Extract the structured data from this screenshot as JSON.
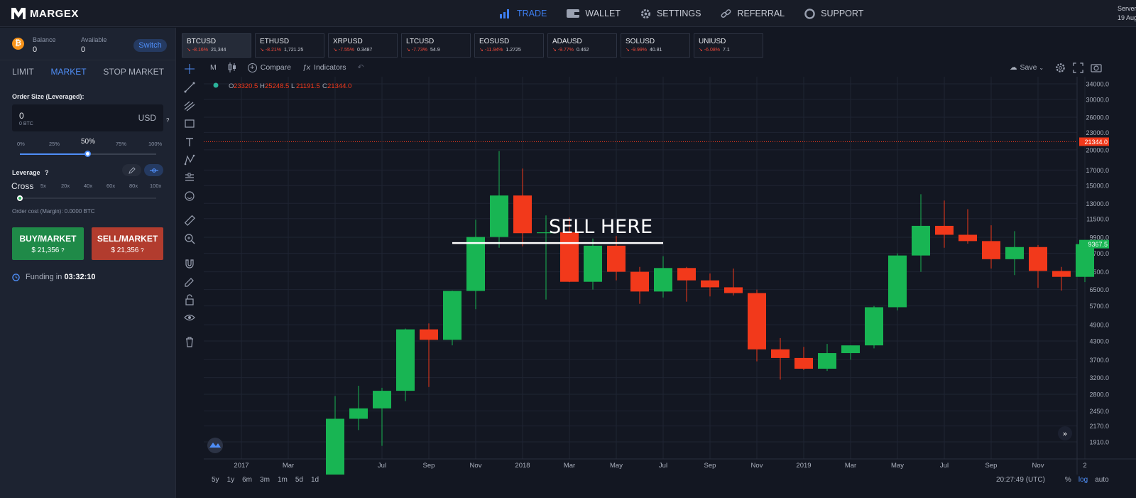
{
  "app": {
    "brand": "MARGEX"
  },
  "nav": [
    {
      "label": "TRADE",
      "icon": "bar-chart-icon",
      "active": true
    },
    {
      "label": "WALLET",
      "icon": "wallet-icon"
    },
    {
      "label": "SETTINGS",
      "icon": "gear-icon"
    },
    {
      "label": "REFERRAL",
      "icon": "link-icon"
    },
    {
      "label": "SUPPORT",
      "icon": "lifebuoy-icon"
    }
  ],
  "server": {
    "line1": "Server",
    "line2": "19 Aug"
  },
  "sidebar": {
    "balance_label": "Balance",
    "balance_value": "0",
    "available_label": "Available",
    "available_value": "0",
    "switch_label": "Switch",
    "order_tabs": [
      "LIMIT",
      "MARKET",
      "STOP MARKET"
    ],
    "active_tab": "MARKET",
    "order_size_label": "Order Size (Leveraged):",
    "order_size_value": "0",
    "order_size_sub": "0 BTC",
    "order_size_currency": "USD",
    "help_mark": "?",
    "size_percents": [
      "0%",
      "25%",
      "50%",
      "75%",
      "100%"
    ],
    "size_selected": "50%",
    "size_fraction": 0.5,
    "leverage_label": "Leverage",
    "leverage_options": [
      "Cross",
      "5x",
      "20x",
      "40x",
      "60x",
      "80x",
      "100x"
    ],
    "leverage_selected": "Cross",
    "order_cost": "Order cost (Margin): 0.0000 BTC",
    "buy_label": "BUY/MARKET",
    "buy_price": "$ 21,356",
    "sell_label": "SELL/MARKET",
    "sell_price": "$ 21,356",
    "funding_label": "Funding in",
    "funding_time": "03:32:10"
  },
  "tickers": [
    {
      "symbol": "BTCUSD",
      "change": "-8.16%",
      "price": "21,344",
      "selected": true
    },
    {
      "symbol": "ETHUSD",
      "change": "-8.21%",
      "price": "1,721.25"
    },
    {
      "symbol": "XRPUSD",
      "change": "-7.55%",
      "price": "0.3487"
    },
    {
      "symbol": "LTCUSD",
      "change": "-7.73%",
      "price": "54.9"
    },
    {
      "symbol": "EOSUSD",
      "change": "-11.94%",
      "price": "1.2725"
    },
    {
      "symbol": "ADAUSD",
      "change": "-9.77%",
      "price": "0.462"
    },
    {
      "symbol": "SOLUSD",
      "change": "-9.99%",
      "price": "40.81"
    },
    {
      "symbol": "UNIUSD",
      "change": "-6.08%",
      "price": "7.1"
    }
  ],
  "chart_toolbar": {
    "interval": "M",
    "compare_label": "Compare",
    "indicators_label": "Indicators",
    "save_label": "Save"
  },
  "ohlc": {
    "o_label": "O",
    "o": "23320.5",
    "h_label": "H",
    "h": "25248.5",
    "l_label": "L",
    "l": "21191.5",
    "c_label": "C",
    "c": "21344.0"
  },
  "annotation": "SELL HERE",
  "bottom": {
    "ranges": [
      "5y",
      "1y",
      "6m",
      "3m",
      "1m",
      "5d",
      "1d"
    ],
    "time": "20:27:49 (UTC)",
    "pct": "%",
    "log": "log",
    "auto": "auto"
  },
  "colors": {
    "up": "#18b553",
    "down": "#f2391b",
    "accent": "#4f8ef7",
    "bg": "#131722"
  },
  "chart_data": {
    "type": "candlestick",
    "interval": "monthly",
    "y_scale": "log",
    "y_ticks": [
      1910,
      2170,
      2450,
      2800,
      3200,
      3700,
      4300,
      4900,
      5700,
      6500,
      7500,
      8700,
      9900,
      11500,
      13000,
      15000,
      17000,
      20000,
      23000,
      26000,
      30000,
      34000
    ],
    "y_tick_labels": [
      "1910.0",
      "2170.0",
      "2450.0",
      "2800.0",
      "3200.0",
      "3700.0",
      "4300.0",
      "4900.0",
      "5700.0",
      "6500.0",
      "7500.0",
      "8700.0",
      "9900.0",
      "11500.0",
      "13000.0",
      "15000.0",
      "17000.0",
      "20000.0",
      "23000.0",
      "26000.0",
      "30000.0",
      "34000.0"
    ],
    "x_labels": [
      "2017",
      "Mar",
      "May",
      "Jul",
      "Sep",
      "Nov",
      "2018",
      "Mar",
      "May",
      "Jul",
      "Sep",
      "Nov",
      "2019",
      "Mar",
      "May",
      "Jul",
      "Sep",
      "Nov",
      "2"
    ],
    "current_price_label": "21344.0",
    "current_price": 21344,
    "last_price_label": "9367.5",
    "last_price": 9367.5,
    "candles": [
      {
        "t": "May 2017",
        "o": 1330,
        "h": 2760,
        "l": 1300,
        "c": 2300
      },
      {
        "t": "Jun 2017",
        "o": 2300,
        "h": 3000,
        "l": 2100,
        "c": 2500
      },
      {
        "t": "Jul 2017",
        "o": 2500,
        "h": 2950,
        "l": 1850,
        "c": 2880
      },
      {
        "t": "Aug 2017",
        "o": 2880,
        "h": 4750,
        "l": 2650,
        "c": 4720
      },
      {
        "t": "Sep 2017",
        "o": 4720,
        "h": 4950,
        "l": 2970,
        "c": 4340
      },
      {
        "t": "Oct 2017",
        "o": 4340,
        "h": 6450,
        "l": 4150,
        "c": 6430
      },
      {
        "t": "Nov 2017",
        "o": 6430,
        "h": 11400,
        "l": 5550,
        "c": 9920
      },
      {
        "t": "Dec 2017",
        "o": 9920,
        "h": 19800,
        "l": 9100,
        "c": 13850
      },
      {
        "t": "Jan 2018",
        "o": 13850,
        "h": 17200,
        "l": 9200,
        "c": 10230
      },
      {
        "t": "Feb 2018",
        "o": 10230,
        "h": 11800,
        "l": 6000,
        "c": 10300
      },
      {
        "t": "Mar 2018",
        "o": 10300,
        "h": 11600,
        "l": 6900,
        "c": 6920
      },
      {
        "t": "Apr 2018",
        "o": 6920,
        "h": 9800,
        "l": 6500,
        "c": 9250
      },
      {
        "t": "May 2018",
        "o": 9250,
        "h": 10000,
        "l": 7000,
        "c": 7500
      },
      {
        "t": "Jun 2018",
        "o": 7500,
        "h": 7800,
        "l": 5800,
        "c": 6400
      },
      {
        "t": "Jul 2018",
        "o": 6400,
        "h": 8500,
        "l": 6100,
        "c": 7730
      },
      {
        "t": "Aug 2018",
        "o": 7730,
        "h": 7800,
        "l": 5900,
        "c": 7000
      },
      {
        "t": "Sep 2018",
        "o": 7000,
        "h": 7400,
        "l": 6150,
        "c": 6620
      },
      {
        "t": "Oct 2018",
        "o": 6620,
        "h": 7700,
        "l": 6200,
        "c": 6320
      },
      {
        "t": "Nov 2018",
        "o": 6320,
        "h": 6500,
        "l": 3650,
        "c": 4020
      },
      {
        "t": "Dec 2018",
        "o": 4020,
        "h": 4400,
        "l": 3150,
        "c": 3750
      },
      {
        "t": "Jan 2019",
        "o": 3750,
        "h": 4100,
        "l": 3400,
        "c": 3440
      },
      {
        "t": "Feb 2019",
        "o": 3440,
        "h": 4200,
        "l": 3380,
        "c": 3900
      },
      {
        "t": "Mar 2019",
        "o": 3900,
        "h": 4150,
        "l": 3700,
        "c": 4150
      },
      {
        "t": "Apr 2019",
        "o": 4150,
        "h": 5700,
        "l": 4050,
        "c": 5640
      },
      {
        "t": "May 2019",
        "o": 5640,
        "h": 8700,
        "l": 5500,
        "c": 8550
      },
      {
        "t": "Jun 2019",
        "o": 8550,
        "h": 14000,
        "l": 7500,
        "c": 10850
      },
      {
        "t": "Jul 2019",
        "o": 10850,
        "h": 13300,
        "l": 9100,
        "c": 10100
      },
      {
        "t": "Aug 2019",
        "o": 10100,
        "h": 12400,
        "l": 9400,
        "c": 9600
      },
      {
        "t": "Sep 2019",
        "o": 9600,
        "h": 10900,
        "l": 7700,
        "c": 8300
      },
      {
        "t": "Oct 2019",
        "o": 8300,
        "h": 10400,
        "l": 7300,
        "c": 9150
      },
      {
        "t": "Nov 2019",
        "o": 9150,
        "h": 9300,
        "l": 6600,
        "c": 7550
      },
      {
        "t": "Dec 2019",
        "o": 7550,
        "h": 7800,
        "l": 6450,
        "c": 7200
      },
      {
        "t": "Jan 2020",
        "o": 7200,
        "h": 9600,
        "l": 6900,
        "c": 9367.5
      }
    ],
    "sell_line_price": 9450
  }
}
